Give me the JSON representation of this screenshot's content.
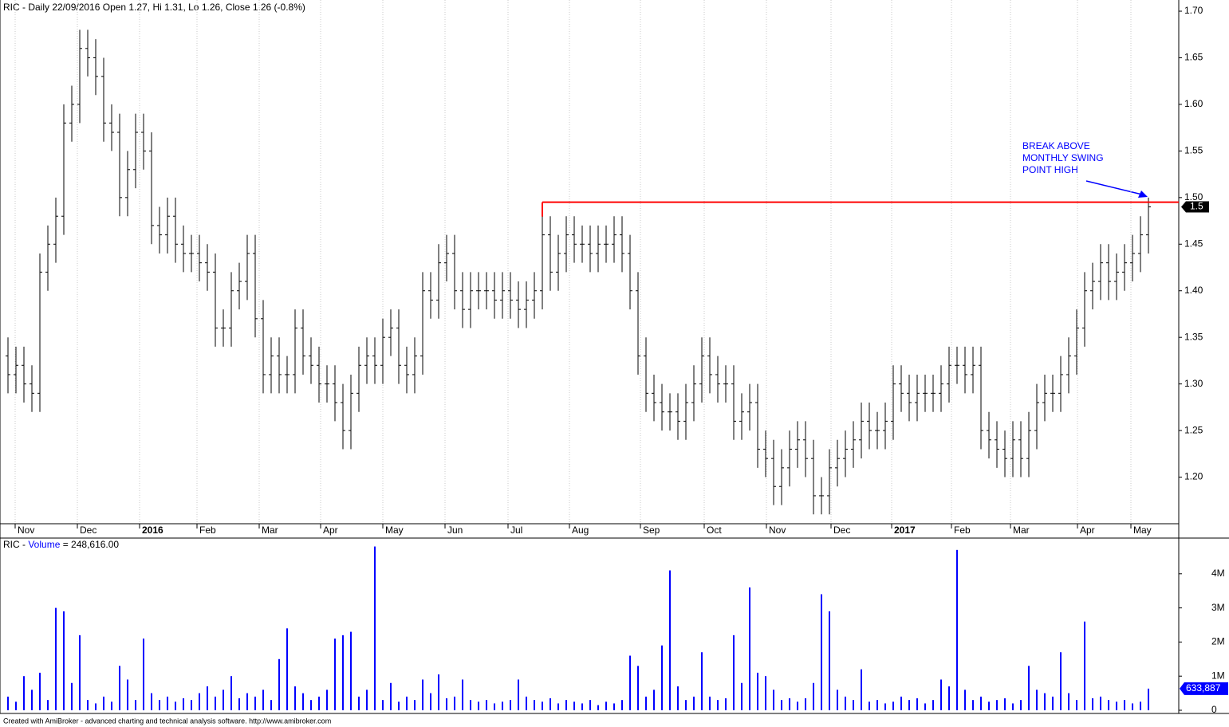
{
  "chart_data": [
    {
      "type": "ohlc",
      "title": "RIC - Daily 22/09/2016 Open 1.27, Hi 1.31, Lo 1.26, Close 1.26 (-0.8%)",
      "xlim": [
        -1,
        146.8
      ],
      "xticks": [
        {
          "value": 0.9,
          "label": "Nov"
        },
        {
          "value": 8.7,
          "label": "Dec"
        },
        {
          "value": 16.5,
          "label": "2016"
        },
        {
          "value": 23.7,
          "label": "Feb"
        },
        {
          "value": 31.5,
          "label": "Mar"
        },
        {
          "value": 39.2,
          "label": "Apr"
        },
        {
          "value": 47,
          "label": "May"
        },
        {
          "value": 54.8,
          "label": "Jun"
        },
        {
          "value": 62.7,
          "label": "Jul"
        },
        {
          "value": 70.4,
          "label": "Aug"
        },
        {
          "value": 79.3,
          "label": "Sep"
        },
        {
          "value": 87.3,
          "label": "Oct"
        },
        {
          "value": 95.1,
          "label": "Nov"
        },
        {
          "value": 103.2,
          "label": "Dec"
        },
        {
          "value": 110.8,
          "label": "2017"
        },
        {
          "value": 118.3,
          "label": "Feb"
        },
        {
          "value": 125.7,
          "label": "Mar"
        },
        {
          "value": 134.1,
          "label": "Apr"
        },
        {
          "value": 140.8,
          "label": "May"
        }
      ],
      "ylim": [
        1.15,
        1.712
      ],
      "yticks": [
        {
          "value": 1.2,
          "label": "1.20"
        },
        {
          "value": 1.25,
          "label": "1.25"
        },
        {
          "value": 1.3,
          "label": "1.30"
        },
        {
          "value": 1.35,
          "label": "1.35"
        },
        {
          "value": 1.4,
          "label": "1.40"
        },
        {
          "value": 1.45,
          "label": "1.45"
        },
        {
          "value": 1.5,
          "label": "1.50"
        },
        {
          "value": 1.55,
          "label": "1.55"
        },
        {
          "value": 1.6,
          "label": "1.60"
        },
        {
          "value": 1.65,
          "label": "1.65"
        },
        {
          "value": 1.7,
          "label": "1.70"
        }
      ],
      "grid": true,
      "color": "#000000",
      "open": [
        1.33,
        1.31,
        1.32,
        1.3,
        1.29,
        1.42,
        1.45,
        1.48,
        1.58,
        1.6,
        1.66,
        1.65,
        1.63,
        1.58,
        1.57,
        1.5,
        1.53,
        1.57,
        1.55,
        1.47,
        1.46,
        1.48,
        1.45,
        1.44,
        1.44,
        1.43,
        1.42,
        1.36,
        1.36,
        1.4,
        1.41,
        1.44,
        1.37,
        1.31,
        1.33,
        1.31,
        1.31,
        1.36,
        1.33,
        1.32,
        1.3,
        1.3,
        1.28,
        1.25,
        1.29,
        1.32,
        1.33,
        1.32,
        1.35,
        1.36,
        1.32,
        1.31,
        1.33,
        1.4,
        1.39,
        1.43,
        1.44,
        1.4,
        1.38,
        1.4,
        1.4,
        1.4,
        1.39,
        1.4,
        1.39,
        1.38,
        1.39,
        1.4,
        1.46,
        1.42,
        1.44,
        1.46,
        1.45,
        1.45,
        1.44,
        1.45,
        1.45,
        1.46,
        1.44,
        1.4,
        1.33,
        1.29,
        1.28,
        1.27,
        1.27,
        1.26,
        1.28,
        1.3,
        1.33,
        1.31,
        1.3,
        1.3,
        1.26,
        1.27,
        1.28,
        1.23,
        1.22,
        1.19,
        1.21,
        1.23,
        1.24,
        1.22,
        1.18,
        1.18,
        1.21,
        1.22,
        1.23,
        1.24,
        1.26,
        1.25,
        1.25,
        1.26,
        1.3,
        1.29,
        1.28,
        1.29,
        1.29,
        1.29,
        1.3,
        1.32,
        1.32,
        1.31,
        1.32,
        1.25,
        1.24,
        1.23,
        1.22,
        1.24,
        1.22,
        1.25,
        1.28,
        1.29,
        1.29,
        1.31,
        1.33,
        1.36,
        1.4,
        1.41,
        1.43,
        1.41,
        1.42,
        1.43,
        1.44,
        1.46
      ],
      "high": [
        1.35,
        1.34,
        1.34,
        1.32,
        1.44,
        1.47,
        1.5,
        1.6,
        1.62,
        1.68,
        1.68,
        1.67,
        1.65,
        1.6,
        1.59,
        1.55,
        1.59,
        1.59,
        1.57,
        1.49,
        1.5,
        1.5,
        1.47,
        1.46,
        1.46,
        1.45,
        1.44,
        1.38,
        1.42,
        1.43,
        1.46,
        1.46,
        1.39,
        1.35,
        1.35,
        1.33,
        1.38,
        1.38,
        1.35,
        1.34,
        1.32,
        1.32,
        1.3,
        1.31,
        1.34,
        1.35,
        1.35,
        1.37,
        1.38,
        1.38,
        1.34,
        1.35,
        1.42,
        1.42,
        1.45,
        1.46,
        1.46,
        1.42,
        1.42,
        1.42,
        1.42,
        1.42,
        1.42,
        1.42,
        1.41,
        1.41,
        1.42,
        1.49,
        1.48,
        1.46,
        1.48,
        1.48,
        1.47,
        1.47,
        1.47,
        1.47,
        1.48,
        1.48,
        1.46,
        1.42,
        1.35,
        1.31,
        1.3,
        1.29,
        1.29,
        1.3,
        1.32,
        1.35,
        1.35,
        1.33,
        1.32,
        1.32,
        1.29,
        1.3,
        1.3,
        1.25,
        1.24,
        1.23,
        1.25,
        1.26,
        1.26,
        1.24,
        1.2,
        1.23,
        1.24,
        1.25,
        1.26,
        1.28,
        1.28,
        1.27,
        1.28,
        1.32,
        1.32,
        1.31,
        1.31,
        1.31,
        1.31,
        1.32,
        1.34,
        1.34,
        1.34,
        1.34,
        1.34,
        1.27,
        1.26,
        1.25,
        1.26,
        1.26,
        1.27,
        1.3,
        1.31,
        1.31,
        1.33,
        1.35,
        1.38,
        1.42,
        1.43,
        1.45,
        1.45,
        1.44,
        1.45,
        1.46,
        1.48,
        1.5
      ],
      "low": [
        1.29,
        1.29,
        1.28,
        1.27,
        1.27,
        1.4,
        1.43,
        1.46,
        1.56,
        1.58,
        1.63,
        1.61,
        1.56,
        1.55,
        1.48,
        1.48,
        1.51,
        1.53,
        1.45,
        1.44,
        1.44,
        1.43,
        1.42,
        1.42,
        1.41,
        1.4,
        1.34,
        1.34,
        1.34,
        1.38,
        1.39,
        1.35,
        1.29,
        1.29,
        1.29,
        1.29,
        1.29,
        1.31,
        1.3,
        1.28,
        1.28,
        1.26,
        1.23,
        1.23,
        1.27,
        1.3,
        1.3,
        1.3,
        1.33,
        1.3,
        1.29,
        1.29,
        1.31,
        1.37,
        1.37,
        1.41,
        1.38,
        1.36,
        1.36,
        1.38,
        1.38,
        1.37,
        1.37,
        1.37,
        1.36,
        1.36,
        1.37,
        1.38,
        1.4,
        1.4,
        1.42,
        1.43,
        1.43,
        1.42,
        1.42,
        1.43,
        1.43,
        1.42,
        1.38,
        1.31,
        1.27,
        1.26,
        1.25,
        1.25,
        1.24,
        1.24,
        1.26,
        1.28,
        1.29,
        1.28,
        1.28,
        1.24,
        1.24,
        1.25,
        1.21,
        1.2,
        1.17,
        1.17,
        1.19,
        1.21,
        1.2,
        1.16,
        1.16,
        1.16,
        1.19,
        1.2,
        1.21,
        1.22,
        1.23,
        1.23,
        1.23,
        1.24,
        1.27,
        1.26,
        1.26,
        1.27,
        1.27,
        1.27,
        1.28,
        1.3,
        1.29,
        1.29,
        1.23,
        1.22,
        1.21,
        1.2,
        1.2,
        1.2,
        1.2,
        1.23,
        1.26,
        1.27,
        1.27,
        1.29,
        1.31,
        1.34,
        1.38,
        1.39,
        1.39,
        1.39,
        1.4,
        1.41,
        1.42,
        1.44
      ],
      "close": [
        1.31,
        1.32,
        1.3,
        1.29,
        1.42,
        1.45,
        1.48,
        1.58,
        1.6,
        1.66,
        1.65,
        1.63,
        1.58,
        1.57,
        1.5,
        1.53,
        1.57,
        1.55,
        1.47,
        1.46,
        1.48,
        1.45,
        1.44,
        1.44,
        1.43,
        1.42,
        1.36,
        1.36,
        1.4,
        1.41,
        1.44,
        1.37,
        1.31,
        1.33,
        1.31,
        1.31,
        1.36,
        1.33,
        1.32,
        1.3,
        1.3,
        1.28,
        1.25,
        1.29,
        1.32,
        1.33,
        1.32,
        1.35,
        1.36,
        1.32,
        1.31,
        1.33,
        1.4,
        1.39,
        1.43,
        1.44,
        1.4,
        1.38,
        1.4,
        1.4,
        1.4,
        1.39,
        1.4,
        1.39,
        1.38,
        1.39,
        1.4,
        1.46,
        1.42,
        1.44,
        1.46,
        1.45,
        1.45,
        1.44,
        1.45,
        1.45,
        1.46,
        1.44,
        1.4,
        1.33,
        1.29,
        1.28,
        1.27,
        1.27,
        1.26,
        1.28,
        1.3,
        1.33,
        1.31,
        1.3,
        1.3,
        1.26,
        1.27,
        1.28,
        1.23,
        1.22,
        1.19,
        1.21,
        1.23,
        1.24,
        1.22,
        1.18,
        1.18,
        1.21,
        1.22,
        1.23,
        1.24,
        1.26,
        1.25,
        1.25,
        1.26,
        1.3,
        1.29,
        1.28,
        1.29,
        1.29,
        1.29,
        1.3,
        1.32,
        1.32,
        1.31,
        1.32,
        1.25,
        1.24,
        1.23,
        1.22,
        1.24,
        1.22,
        1.25,
        1.28,
        1.29,
        1.29,
        1.31,
        1.33,
        1.36,
        1.4,
        1.41,
        1.43,
        1.41,
        1.42,
        1.43,
        1.44,
        1.46,
        1.49
      ],
      "last_close_label": "1.5",
      "resistance": {
        "value": 1.495,
        "x_start": 67,
        "color": "#ff0000"
      },
      "annotation": [
        "BREAK ABOVE",
        "MONTHLY SWING",
        "POINT HIGH"
      ]
    },
    {
      "type": "bar",
      "title_parts": [
        "RIC - ",
        "Volume",
        " = 248,616.00"
      ],
      "color": "#0000ff",
      "xlim": [
        -1,
        146.8
      ],
      "ylim": [
        0,
        5000000
      ],
      "yticks": [
        {
          "value": 0,
          "label": "0"
        },
        {
          "value": 1000000,
          "label": "1M"
        },
        {
          "value": 2000000,
          "label": "2M"
        },
        {
          "value": 3000000,
          "label": "3M"
        },
        {
          "value": 4000000,
          "label": "4M"
        }
      ],
      "values": [
        400000,
        250000,
        1000000,
        600000,
        1100000,
        300000,
        3000000,
        2900000,
        800000,
        2200000,
        300000,
        200000,
        400000,
        250000,
        1300000,
        900000,
        300000,
        2100000,
        500000,
        300000,
        400000,
        250000,
        350000,
        300000,
        500000,
        700000,
        400000,
        600000,
        1000000,
        350000,
        500000,
        400000,
        600000,
        300000,
        1500000,
        2400000,
        700000,
        500000,
        300000,
        400000,
        600000,
        2100000,
        2200000,
        2300000,
        400000,
        600000,
        4800000,
        300000,
        800000,
        250000,
        400000,
        300000,
        900000,
        500000,
        1050000,
        350000,
        400000,
        900000,
        300000,
        250000,
        300000,
        200000,
        250000,
        300000,
        900000,
        400000,
        300000,
        250000,
        350000,
        200000,
        300000,
        250000,
        200000,
        300000,
        150000,
        250000,
        200000,
        300000,
        1600000,
        1300000,
        400000,
        600000,
        1900000,
        4100000,
        700000,
        300000,
        400000,
        1700000,
        400000,
        300000,
        350000,
        2200000,
        800000,
        3600000,
        1100000,
        1000000,
        600000,
        300000,
        350000,
        250000,
        350000,
        800000,
        3400000,
        2900000,
        600000,
        400000,
        300000,
        1200000,
        250000,
        300000,
        200000,
        250000,
        400000,
        300000,
        350000,
        200000,
        300000,
        900000,
        700000,
        4700000,
        600000,
        300000,
        400000,
        250000,
        300000,
        350000,
        200000,
        300000,
        1300000,
        600000,
        500000,
        400000,
        1700000,
        500000,
        300000,
        2600000,
        350000,
        400000,
        300000,
        250000,
        300000,
        200000,
        250000,
        633887
      ],
      "last_value_label": "633,887"
    }
  ],
  "footer": "Created with AmiBroker - advanced charting and technical analysis software. http://www.amibroker.com"
}
